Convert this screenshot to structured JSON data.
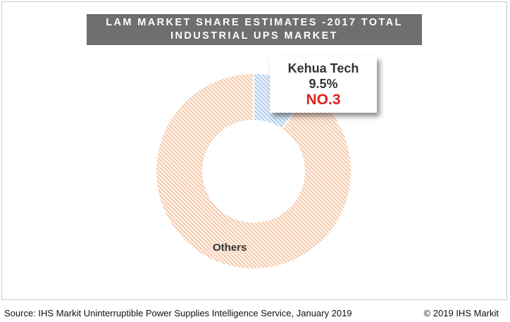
{
  "title": {
    "line1": "LAM MARKET SHARE ESTIMATES -2017 TOTAL",
    "line2": "INDUSTRIAL UPS MARKET"
  },
  "chart_data": {
    "type": "pie",
    "variant": "donut",
    "slices": [
      {
        "label": "Kehua Tech",
        "value": 9.5,
        "color": "#5b9bd5"
      },
      {
        "label": "Others",
        "value": 90.5,
        "color": "#ed9a66"
      }
    ],
    "legend": "none"
  },
  "callout": {
    "name": "Kehua Tech",
    "percent": "9.5%",
    "rank": "NO.3"
  },
  "labels": {
    "others": "Others"
  },
  "footer": {
    "source": "Source: IHS Markit Uninterruptible Power Supplies Intelligence Service, January 2019",
    "copyright": "© 2019 IHS Markit"
  }
}
